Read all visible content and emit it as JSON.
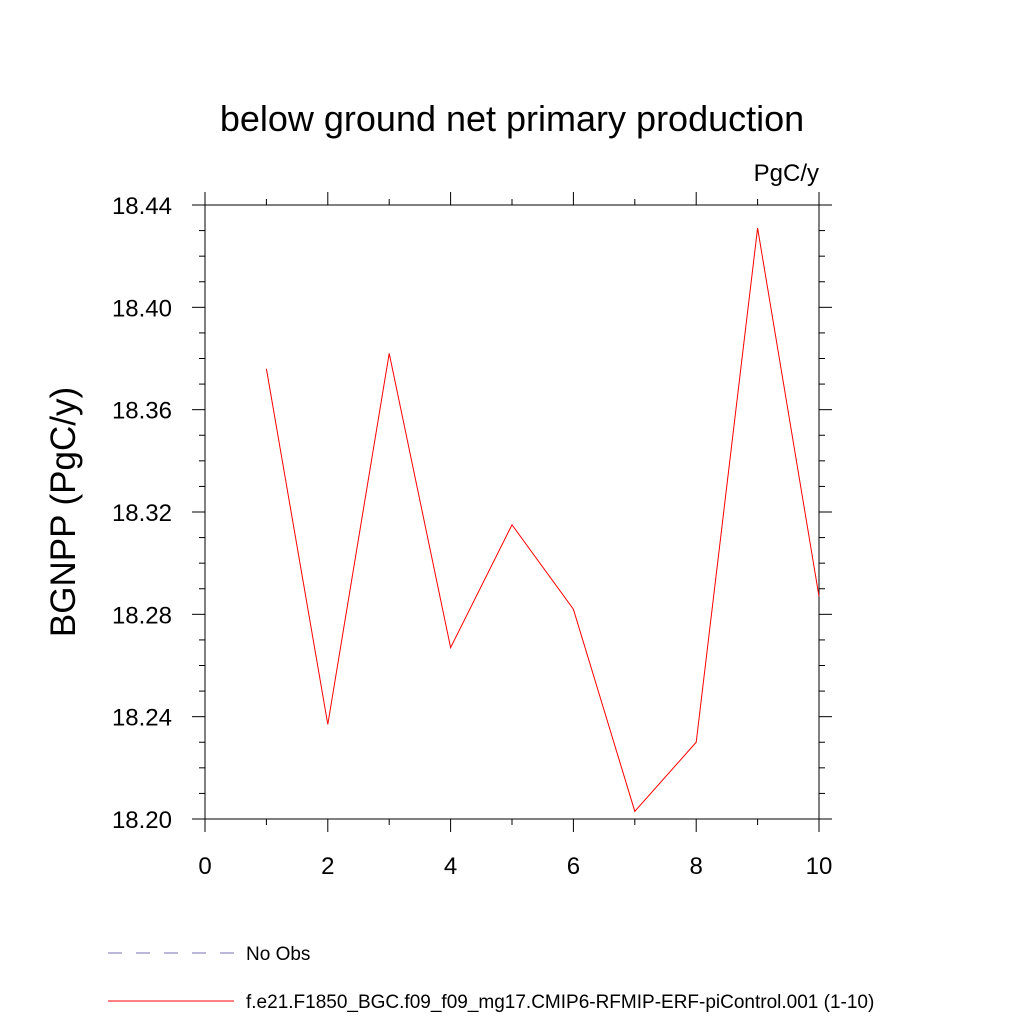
{
  "chart_data": {
    "type": "line",
    "title": "below ground net primary production",
    "units": "PgC/y",
    "xlabel": "",
    "ylabel": "BGNPP  (PgC/y)",
    "xlim": [
      0,
      10
    ],
    "ylim": [
      18.2,
      18.44
    ],
    "x_ticks": [
      0,
      2,
      4,
      6,
      8,
      10
    ],
    "x_tick_labels": [
      "0",
      "2",
      "4",
      "6",
      "8",
      "10"
    ],
    "y_ticks": [
      18.2,
      18.24,
      18.28,
      18.32,
      18.36,
      18.4,
      18.44
    ],
    "y_tick_labels": [
      "18.20",
      "18.24",
      "18.28",
      "18.32",
      "18.36",
      "18.40",
      "18.44"
    ],
    "grid": false,
    "series": [
      {
        "name": "f.e21.F1850_BGC.f09_f09_mg17.CMIP6-RFMIP-ERF-piControl.001 (1-10)",
        "color": "#ff0000",
        "x": [
          1,
          2,
          3,
          4,
          5,
          6,
          7,
          8,
          9,
          10
        ],
        "values": [
          18.376,
          18.237,
          18.382,
          18.267,
          18.315,
          18.282,
          18.203,
          18.23,
          18.431,
          18.287
        ]
      }
    ],
    "legend": [
      {
        "label": "No Obs",
        "color": "#7a6fb8",
        "style": "dashed"
      },
      {
        "label": "f.e21.F1850_BGC.f09_f09_mg17.CMIP6-RFMIP-ERF-piControl.001 (1-10)",
        "color": "#ff0000",
        "style": "solid"
      }
    ]
  }
}
